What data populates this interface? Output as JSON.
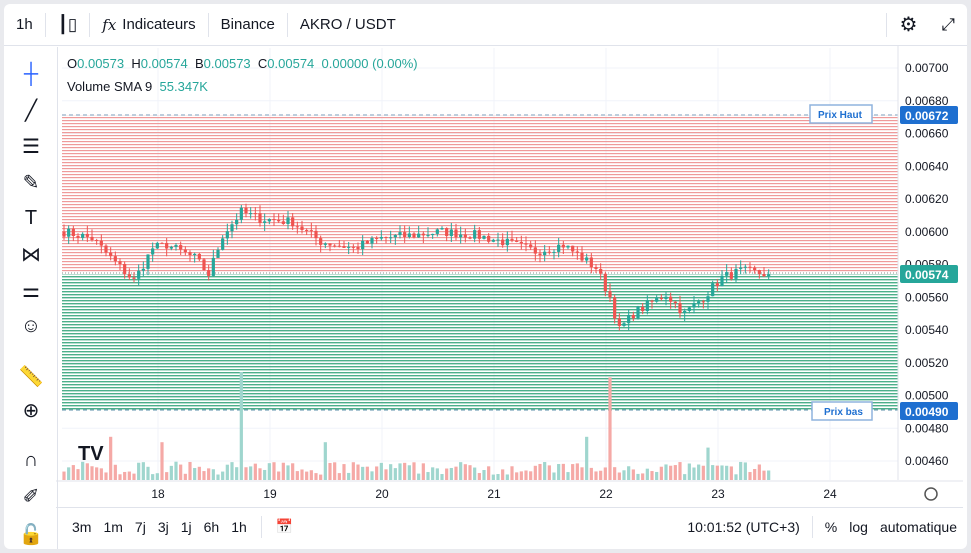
{
  "topbar": {
    "interval": "1h",
    "indicators": "Indicateurs",
    "exchange": "Binance",
    "symbol": "AKRO / USDT"
  },
  "legend": {
    "o_label": "O",
    "o": "0.00573",
    "h_label": "H",
    "h": "0.00574",
    "b_label": "B",
    "b": "0.00573",
    "c_label": "C",
    "c": "0.00574",
    "change": "0.00000 (0.00%)",
    "vol_label": "Volume SMA 9",
    "vol": "55.347K"
  },
  "price_axis": {
    "ticks": [
      "0.00700",
      "0.00680",
      "0.00660",
      "0.00640",
      "0.00620",
      "0.00600",
      "0.00580",
      "0.00560",
      "0.00540",
      "0.00520",
      "0.00500",
      "0.00480",
      "0.00460"
    ],
    "high_label": "0.00672",
    "current_label": "0.00574",
    "low_label": "0.00490"
  },
  "lines": {
    "high_text": "Prix Haut",
    "low_text": "Prix bas"
  },
  "time_axis": [
    "18",
    "19",
    "20",
    "21",
    "22",
    "23",
    "24"
  ],
  "bottombar": {
    "ranges": [
      "3m",
      "1m",
      "7j",
      "3j",
      "1j",
      "6h",
      "1h"
    ],
    "clock": "10:01:52 (UTC+3)",
    "percent": "%",
    "log": "log",
    "auto": "automatique"
  },
  "colors": {
    "up": "#26a69a",
    "down": "#ef5350",
    "accent": "#2962ff",
    "label_blue": "#1e6fd0"
  },
  "chart_data": {
    "type": "candlestick",
    "timeframe": "1h",
    "ylim": [
      0.0045,
      0.0071
    ],
    "high_level": 0.00672,
    "low_level": 0.0049,
    "current": 0.00574,
    "keypoints": [
      [
        0,
        0.006
      ],
      [
        6,
        0.00596
      ],
      [
        10,
        0.00584
      ],
      [
        15,
        0.0057
      ],
      [
        19,
        0.0059
      ],
      [
        22,
        0.00592
      ],
      [
        28,
        0.00584
      ],
      [
        31,
        0.00574
      ],
      [
        34,
        0.00598
      ],
      [
        38,
        0.00612
      ],
      [
        42,
        0.00608
      ],
      [
        49,
        0.00606
      ],
      [
        55,
        0.00594
      ],
      [
        62,
        0.0059
      ],
      [
        68,
        0.00596
      ],
      [
        75,
        0.00598
      ],
      [
        81,
        0.006
      ],
      [
        88,
        0.00598
      ],
      [
        94,
        0.00594
      ],
      [
        101,
        0.00588
      ],
      [
        107,
        0.00592
      ],
      [
        114,
        0.00578
      ],
      [
        117,
        0.0056
      ],
      [
        119,
        0.0054
      ],
      [
        122,
        0.0055
      ],
      [
        129,
        0.00562
      ],
      [
        133,
        0.0055
      ],
      [
        137,
        0.0056
      ],
      [
        141,
        0.00572
      ],
      [
        145,
        0.00576
      ],
      [
        151,
        0.00574
      ]
    ],
    "volume_spikes": [
      [
        38,
        1.0
      ],
      [
        117,
        0.95
      ],
      [
        10,
        0.4
      ],
      [
        21,
        0.35
      ],
      [
        56,
        0.35
      ],
      [
        112,
        0.4
      ],
      [
        138,
        0.3
      ]
    ]
  }
}
